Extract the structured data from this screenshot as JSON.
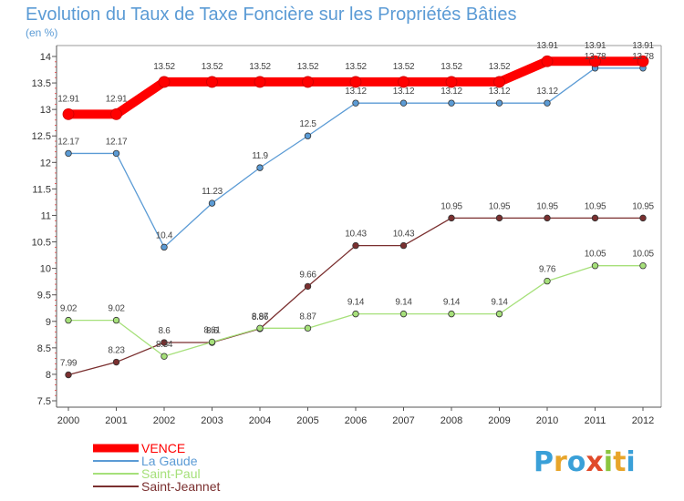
{
  "chart_data": {
    "type": "line",
    "title": "Evolution du Taux de Taxe Foncière sur les Propriétés Bâties",
    "subtitle": "(en %)",
    "xlabel": "",
    "ylabel": "",
    "x": [
      "2000",
      "2001",
      "2002",
      "2003",
      "2004",
      "2005",
      "2006",
      "2007",
      "2008",
      "2009",
      "2010",
      "2011",
      "2012"
    ],
    "ylim": [
      7.5,
      14
    ],
    "yticks": [
      "7.5",
      "8",
      "8.5",
      "9",
      "9.5",
      "10",
      "10.5",
      "11",
      "11.5",
      "12",
      "12.5",
      "13",
      "13.5",
      "14"
    ],
    "grid": false,
    "legend_position": "bottom-left",
    "series": [
      {
        "name": "VENCE",
        "color": "#ff0000",
        "values": [
          12.91,
          12.91,
          13.52,
          13.52,
          13.52,
          13.52,
          13.52,
          13.52,
          13.52,
          13.52,
          13.91,
          13.91,
          13.91
        ],
        "labels": [
          "12.91",
          "12.91",
          "13.52",
          "13.52",
          "13.52",
          "13.52",
          "13.52",
          "13.52",
          "13.52",
          "13.52",
          "13.91",
          "13.91",
          "13.91"
        ]
      },
      {
        "name": "La Gaude",
        "color": "#5b9bd5",
        "values": [
          12.17,
          12.17,
          10.4,
          11.23,
          11.9,
          12.5,
          13.12,
          13.12,
          13.12,
          13.12,
          13.12,
          13.78,
          13.78
        ],
        "labels": [
          "12.17",
          "12.17",
          "10.4",
          "11.23",
          "11.9",
          "12.5",
          "13.12",
          "13.12",
          "13.12",
          "13.12",
          "13.12",
          "13.78",
          "13.78"
        ]
      },
      {
        "name": "Saint-Paul",
        "color": "#a6e07a",
        "values": [
          9.02,
          9.02,
          8.34,
          8.61,
          8.87,
          8.87,
          9.14,
          9.14,
          9.14,
          9.14,
          9.76,
          10.05,
          10.05
        ],
        "labels": [
          "9.02",
          "9.02",
          "8.34",
          "8.61",
          "8.87",
          "8.87",
          "9.14",
          "9.14",
          "9.14",
          "9.14",
          "9.76",
          "10.05",
          "10.05"
        ]
      },
      {
        "name": "Saint-Jeannet",
        "color": "#7a2f2f",
        "values": [
          7.99,
          8.23,
          8.6,
          8.6,
          8.86,
          9.66,
          10.43,
          10.43,
          10.95,
          10.95,
          10.95,
          10.95,
          10.95
        ],
        "labels": [
          "7.99",
          "8.23",
          "8.6",
          "8.6",
          "8.86",
          "9.66",
          "10.43",
          "10.43",
          "10.95",
          "10.95",
          "10.95",
          "10.95",
          "10.95"
        ]
      }
    ]
  },
  "brand": {
    "letters": [
      "P",
      "r",
      "o",
      "x",
      "i",
      "t",
      "i"
    ],
    "colors": [
      "#3aa0d8",
      "#e8a52a",
      "#3aa0d8",
      "#e04a2a",
      "#8cc63f",
      "#e8a52a",
      "#3aa0d8"
    ]
  }
}
